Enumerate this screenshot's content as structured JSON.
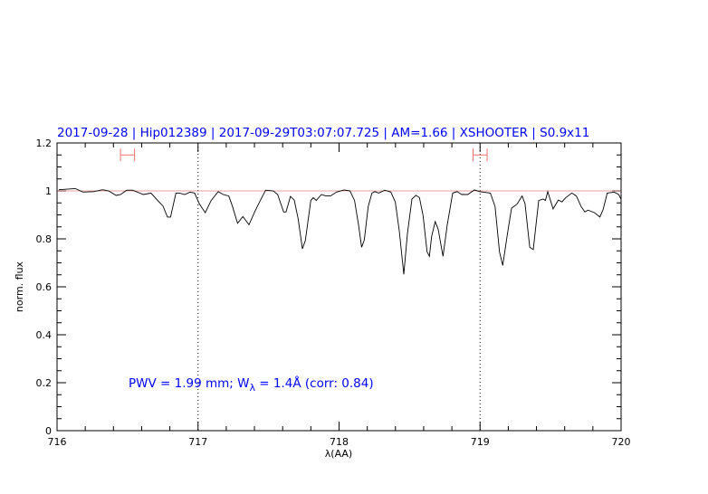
{
  "chart_data": {
    "type": "line",
    "title": "2017-09-28 | Hip012389 | 2017-09-29T03:07:07.725 | AM=1.66 | XSHOOTER | S0.9x11",
    "xlabel": "λ(AA)",
    "ylabel": "norm. flux",
    "xlim": [
      716,
      720
    ],
    "ylim": [
      0,
      1.2
    ],
    "xticks": [
      716,
      717,
      718,
      719,
      720
    ],
    "xtick_labels": [
      "716",
      "717",
      "718",
      "719",
      "720"
    ],
    "yticks": [
      0,
      0.2,
      0.4,
      0.6,
      0.8,
      1,
      1.2
    ],
    "ytick_labels": [
      "0",
      "0.2",
      "0.4",
      "0.6",
      "0.8",
      "1",
      "1.2"
    ],
    "grid": false,
    "reference_line": {
      "y": 1,
      "color": "#e06060"
    },
    "vertical_markers": [
      717,
      719
    ],
    "error_bars": [
      {
        "x_from": 716.45,
        "x_to": 716.55,
        "y": 1.15
      },
      {
        "x_from": 718.95,
        "x_to": 719.05,
        "y": 1.15
      }
    ],
    "error_bar_color": "#f07070",
    "series_color": "#000000",
    "text_color": "#0000ff",
    "annotation": {
      "prefix": "PWV  =  1.99  mm;  W",
      "subscript": "λ",
      "suffix": "  =  1.4Å  (corr:  0.84)"
    },
    "series": [
      {
        "x": [
          716.013,
          716.13,
          716.184,
          716.259,
          716.323,
          716.366,
          716.419,
          716.451,
          716.494,
          716.537,
          716.612,
          716.666,
          716.719,
          716.751,
          716.783,
          716.805,
          716.843,
          716.869,
          716.905,
          716.944,
          716.976,
          717.008,
          717.051,
          717.093,
          717.143,
          717.179,
          717.218,
          717.244,
          717.28,
          717.318,
          717.361,
          717.404,
          717.436,
          717.479,
          717.533,
          717.565,
          717.607,
          717.624,
          717.655,
          717.682,
          717.71,
          717.74,
          717.761,
          717.8,
          717.817,
          717.838,
          717.875,
          717.907,
          717.939,
          717.982,
          718.035,
          718.078,
          718.11,
          718.138,
          718.16,
          718.179,
          718.207,
          718.233,
          718.254,
          718.281,
          718.324,
          718.367,
          718.399,
          718.427,
          718.459,
          718.485,
          718.517,
          718.545,
          718.57,
          718.596,
          718.624,
          718.641,
          718.656,
          718.682,
          718.703,
          718.737,
          718.767,
          718.806,
          718.838,
          718.87,
          718.913,
          718.96,
          718.998,
          719.073,
          719.106,
          719.138,
          719.161,
          719.191,
          719.223,
          719.262,
          719.298,
          719.319,
          719.352,
          719.377,
          719.416,
          719.448,
          719.463,
          719.48,
          719.518,
          719.555,
          719.581,
          719.608,
          719.651,
          719.683,
          719.716,
          719.743,
          719.765,
          719.812,
          719.85,
          719.872,
          719.902,
          719.951,
          719.983,
          720.0
        ],
        "y": [
          1.005,
          1.01,
          0.995,
          0.997,
          1.005,
          1.0,
          0.981,
          0.985,
          1.003,
          1.003,
          0.985,
          0.991,
          0.957,
          0.937,
          0.891,
          0.891,
          0.991,
          0.991,
          0.985,
          0.995,
          0.991,
          0.947,
          0.909,
          0.96,
          0.997,
          0.985,
          0.979,
          0.935,
          0.865,
          0.893,
          0.859,
          0.916,
          0.954,
          1.003,
          1.0,
          0.985,
          0.912,
          0.912,
          0.977,
          0.962,
          0.884,
          0.758,
          0.794,
          0.96,
          0.972,
          0.96,
          0.985,
          0.979,
          0.979,
          0.995,
          1.004,
          1.0,
          0.96,
          0.859,
          0.765,
          0.796,
          0.935,
          0.991,
          0.997,
          0.991,
          1.003,
          0.995,
          0.954,
          0.834,
          0.652,
          0.822,
          0.966,
          0.982,
          0.972,
          0.897,
          0.746,
          0.727,
          0.809,
          0.872,
          0.84,
          0.727,
          0.859,
          0.991,
          0.997,
          0.985,
          0.985,
          1.004,
          0.997,
          0.991,
          0.935,
          0.746,
          0.689,
          0.809,
          0.928,
          0.945,
          0.979,
          0.947,
          0.765,
          0.755,
          0.96,
          0.966,
          0.96,
          0.997,
          0.925,
          0.962,
          0.954,
          0.972,
          0.991,
          0.979,
          0.935,
          0.912,
          0.92,
          0.909,
          0.891,
          0.922,
          0.991,
          0.995,
          0.985,
          0.965
        ]
      }
    ]
  }
}
